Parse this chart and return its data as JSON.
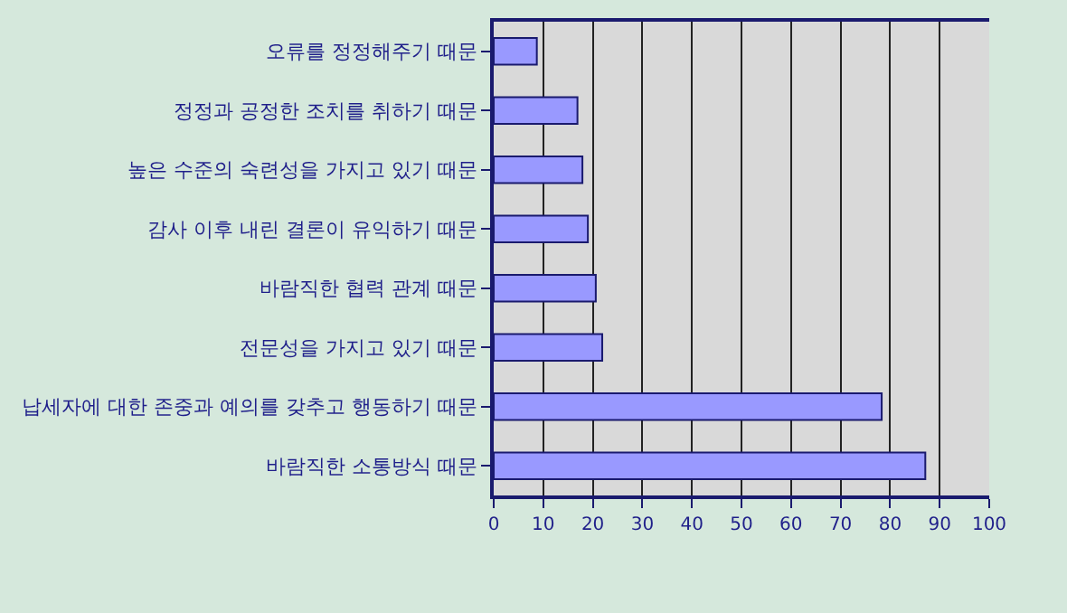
{
  "chart_data": {
    "type": "bar",
    "orientation": "horizontal",
    "categories": [
      "오류를 정정해주기 때문",
      "정정과 공정한 조치를 취하기 때문",
      "높은 수준의 숙련성을 가지고 있기 때문",
      "감사 이후 내린 결론이 유익하기 때문",
      "바람직한 협력 관계 때문",
      "전문성을 가지고 있기 때문",
      "납세자에 대한 존중과 예의를 갖추고 행동하기 때문",
      "바람직한 소통방식 때문"
    ],
    "values": [
      8.7,
      16.9,
      17.9,
      19.0,
      20.6,
      21.9,
      78.3,
      87.1
    ],
    "color": "#9999ff",
    "xlim": [
      0,
      100
    ],
    "xticks": [
      0,
      10,
      20,
      30,
      40,
      50,
      60,
      70,
      80,
      90,
      100
    ],
    "grid": "x",
    "legend": false
  }
}
